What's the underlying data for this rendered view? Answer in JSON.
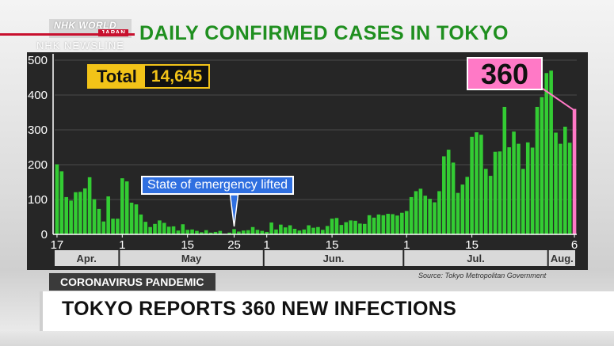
{
  "brand": {
    "logo_top": "NHK WORLD",
    "logo_bottom": "JAPAN",
    "newsline": "NHK NEWSLINE"
  },
  "headline": "DAILY CONFIRMED CASES IN TOKYO",
  "total": {
    "label": "Total",
    "value": "14,645"
  },
  "callout": {
    "value": "360"
  },
  "annotation": {
    "text": "State of emergency lifted"
  },
  "source": "Source: Tokyo Metropolitan Government",
  "tag": "CORONAVIRUS PANDEMIC",
  "bottom_headline": "TOKYO REPORTS 360 NEW INFECTIONS",
  "colors": {
    "bar": "#33cc33",
    "highlight": "#ff79c6",
    "headline": "#1f8f1f",
    "total_bg": "#f2c318",
    "annotation_bg": "#2f6fe0"
  },
  "chart_data": {
    "type": "bar",
    "title": "DAILY CONFIRMED CASES IN TOKYO",
    "xlabel": "",
    "ylabel": "",
    "ylim": [
      0,
      500
    ],
    "yticks": [
      0,
      100,
      200,
      300,
      400,
      500
    ],
    "grid": true,
    "x_tick_labels": [
      {
        "label": "17",
        "index": 0
      },
      {
        "label": "1",
        "index": 14
      },
      {
        "label": "15",
        "index": 28
      },
      {
        "label": "25",
        "index": 38
      },
      {
        "label": "1",
        "index": 45
      },
      {
        "label": "15",
        "index": 59
      },
      {
        "label": "1",
        "index": 75
      },
      {
        "label": "15",
        "index": 89
      },
      {
        "label": "6",
        "index": 111
      }
    ],
    "month_labels": [
      {
        "label": "Apr.",
        "start": 0,
        "end": 13
      },
      {
        "label": "May",
        "start": 14,
        "end": 44
      },
      {
        "label": "Jun.",
        "start": 45,
        "end": 74
      },
      {
        "label": "Jul.",
        "start": 75,
        "end": 105
      },
      {
        "label": "Aug.",
        "start": 106,
        "end": 111
      }
    ],
    "values": [
      201,
      181,
      107,
      97,
      121,
      122,
      132,
      164,
      101,
      73,
      37,
      109,
      45,
      45,
      161,
      152,
      91,
      86,
      57,
      36,
      21,
      30,
      40,
      33,
      22,
      23,
      11,
      29,
      13,
      14,
      10,
      6,
      12,
      5,
      7,
      10,
      2,
      5,
      15,
      8,
      11,
      12,
      21,
      13,
      10,
      7,
      34,
      14,
      28,
      20,
      26,
      16,
      11,
      14,
      26,
      19,
      21,
      13,
      24,
      45,
      47,
      27,
      35,
      40,
      39,
      31,
      30,
      55,
      48,
      57,
      55,
      59,
      58,
      54,
      62,
      67,
      107,
      124,
      131,
      111,
      102,
      92,
      124,
      224,
      243,
      206,
      119,
      143,
      165,
      280,
      293,
      286,
      188,
      168,
      237,
      238,
      366,
      250,
      295,
      260,
      188,
      264,
      249,
      366,
      394,
      463,
      470,
      292,
      260,
      309,
      263,
      360
    ]
  }
}
